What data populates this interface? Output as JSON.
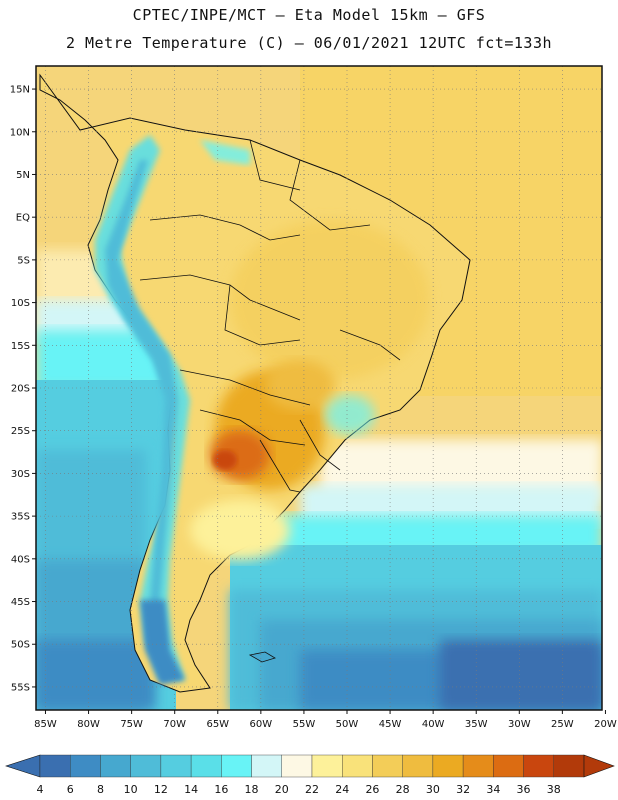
{
  "header": {
    "line1": "CPTEC/INPE/MCT –  Eta Model 15km – GFS",
    "line2": "2 Metre Temperature (C) – 06/01/2021 12UTC fct=133h"
  },
  "map": {
    "lat_labels": [
      "15N",
      "10N",
      "5N",
      "EQ",
      "5S",
      "10S",
      "15S",
      "20S",
      "25S",
      "30S",
      "35S",
      "40S",
      "45S",
      "50S",
      "55S"
    ],
    "lat_values": [
      15,
      10,
      5,
      0,
      -5,
      -10,
      -15,
      -20,
      -25,
      -30,
      -35,
      -40,
      -45,
      -50,
      -55
    ],
    "lon_labels": [
      "85W",
      "80W",
      "75W",
      "70W",
      "65W",
      "60W",
      "55W",
      "50W",
      "45W",
      "40W",
      "35W",
      "30W",
      "25W",
      "20W"
    ],
    "lon_values": [
      -85,
      -80,
      -75,
      -70,
      -65,
      -60,
      -55,
      -50,
      -45,
      -40,
      -35,
      -30,
      -25,
      -20
    ],
    "lat_range": [
      -57.7,
      17.7
    ],
    "lon_range": [
      -86.1,
      -20.4
    ]
  },
  "colorbar": {
    "labels": [
      "4",
      "6",
      "8",
      "10",
      "12",
      "14",
      "16",
      "18",
      "20",
      "22",
      "24",
      "26",
      "28",
      "30",
      "32",
      "34",
      "36",
      "38"
    ],
    "colors": [
      "#3a6fb0",
      "#3e8cc4",
      "#46a8cf",
      "#4fbcd8",
      "#55cde0",
      "#5adfe8",
      "#68f3f6",
      "#d3f6f7",
      "#fdf8e4",
      "#fdf19a",
      "#f9e27a",
      "#f3cd58",
      "#efbc3f",
      "#ebaa22",
      "#e58c1a",
      "#dc6c12",
      "#c9460e",
      "#b23a0a"
    ]
  }
}
